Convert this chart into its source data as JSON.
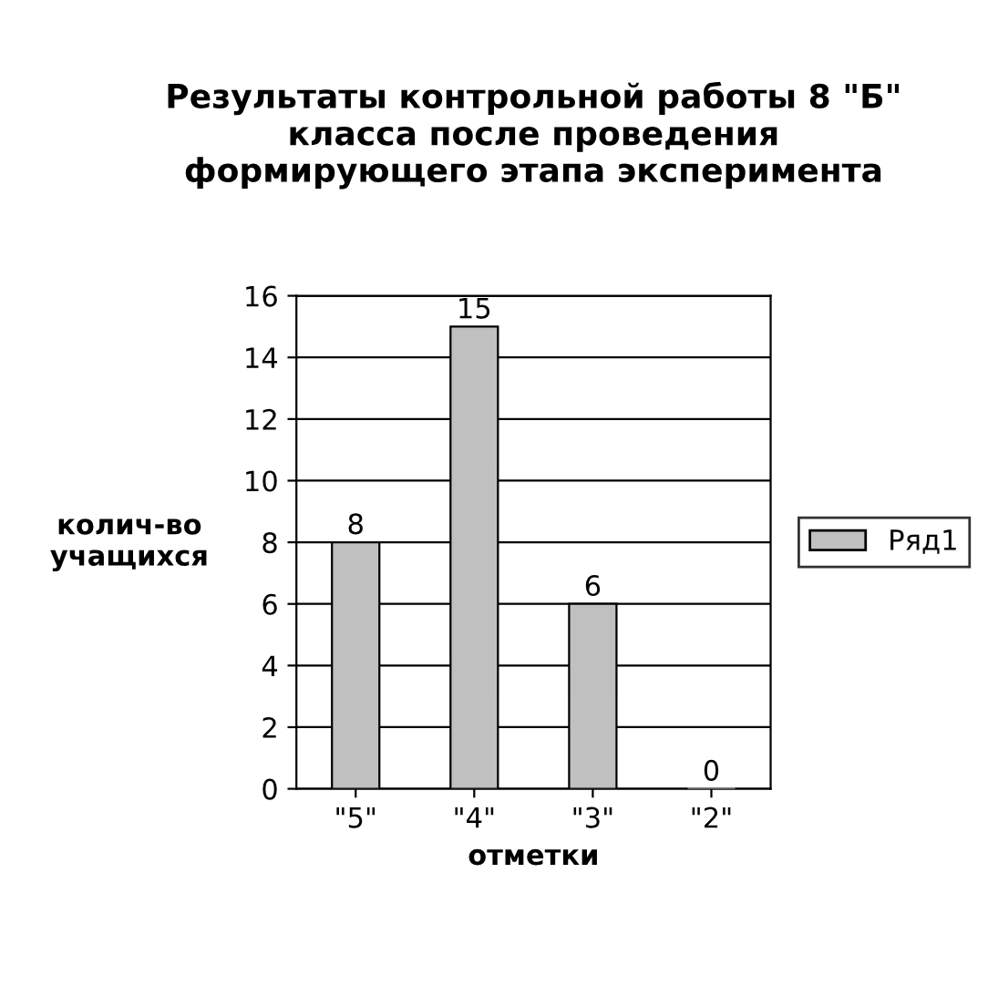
{
  "chart_data": {
    "type": "bar",
    "title": "Результаты контрольной работы 8 \"Б\"\nкласса после проведения\nформирующего этапа эксперимента",
    "xlabel": "отметки",
    "ylabel": "колич-во\nучащихся",
    "categories": [
      "\"5\"",
      "\"4\"",
      "\"3\"",
      "\"2\""
    ],
    "series": [
      {
        "name": "Ряд1",
        "color": "#c0c0c0",
        "values": [
          8,
          15,
          6,
          0
        ]
      }
    ],
    "ylim": [
      0,
      16
    ],
    "yticks": [
      0,
      2,
      4,
      6,
      8,
      10,
      12,
      14,
      16
    ],
    "grid": "y",
    "legend": "right",
    "data_labels": true
  }
}
